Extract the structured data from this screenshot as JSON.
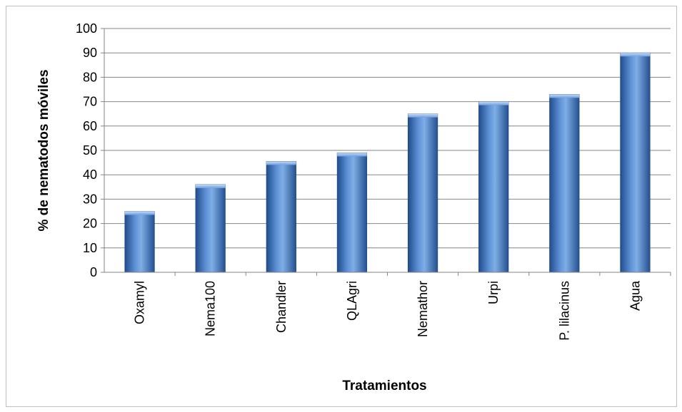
{
  "chart_data": {
    "type": "bar",
    "categories": [
      "Oxamyl",
      "Nema100",
      "Chandler",
      "QLAgri",
      "Nemathor",
      "Urpi",
      "P. lilacinus",
      "Agua"
    ],
    "values": [
      25,
      36,
      45.5,
      49,
      65,
      70,
      73,
      90
    ],
    "title": "",
    "xlabel": "Tratamientos",
    "ylabel": "% de nematodos móviles",
    "ylim": [
      0,
      100
    ],
    "yticks": [
      0,
      10,
      20,
      30,
      40,
      50,
      60,
      70,
      80,
      90,
      100
    ],
    "grid": true,
    "legend": "none",
    "colors": {
      "bar_dark": "#2a5a9c",
      "bar_light": "#79a7e0",
      "bar_top": "#a9c6ef",
      "grid": "#868686"
    }
  }
}
